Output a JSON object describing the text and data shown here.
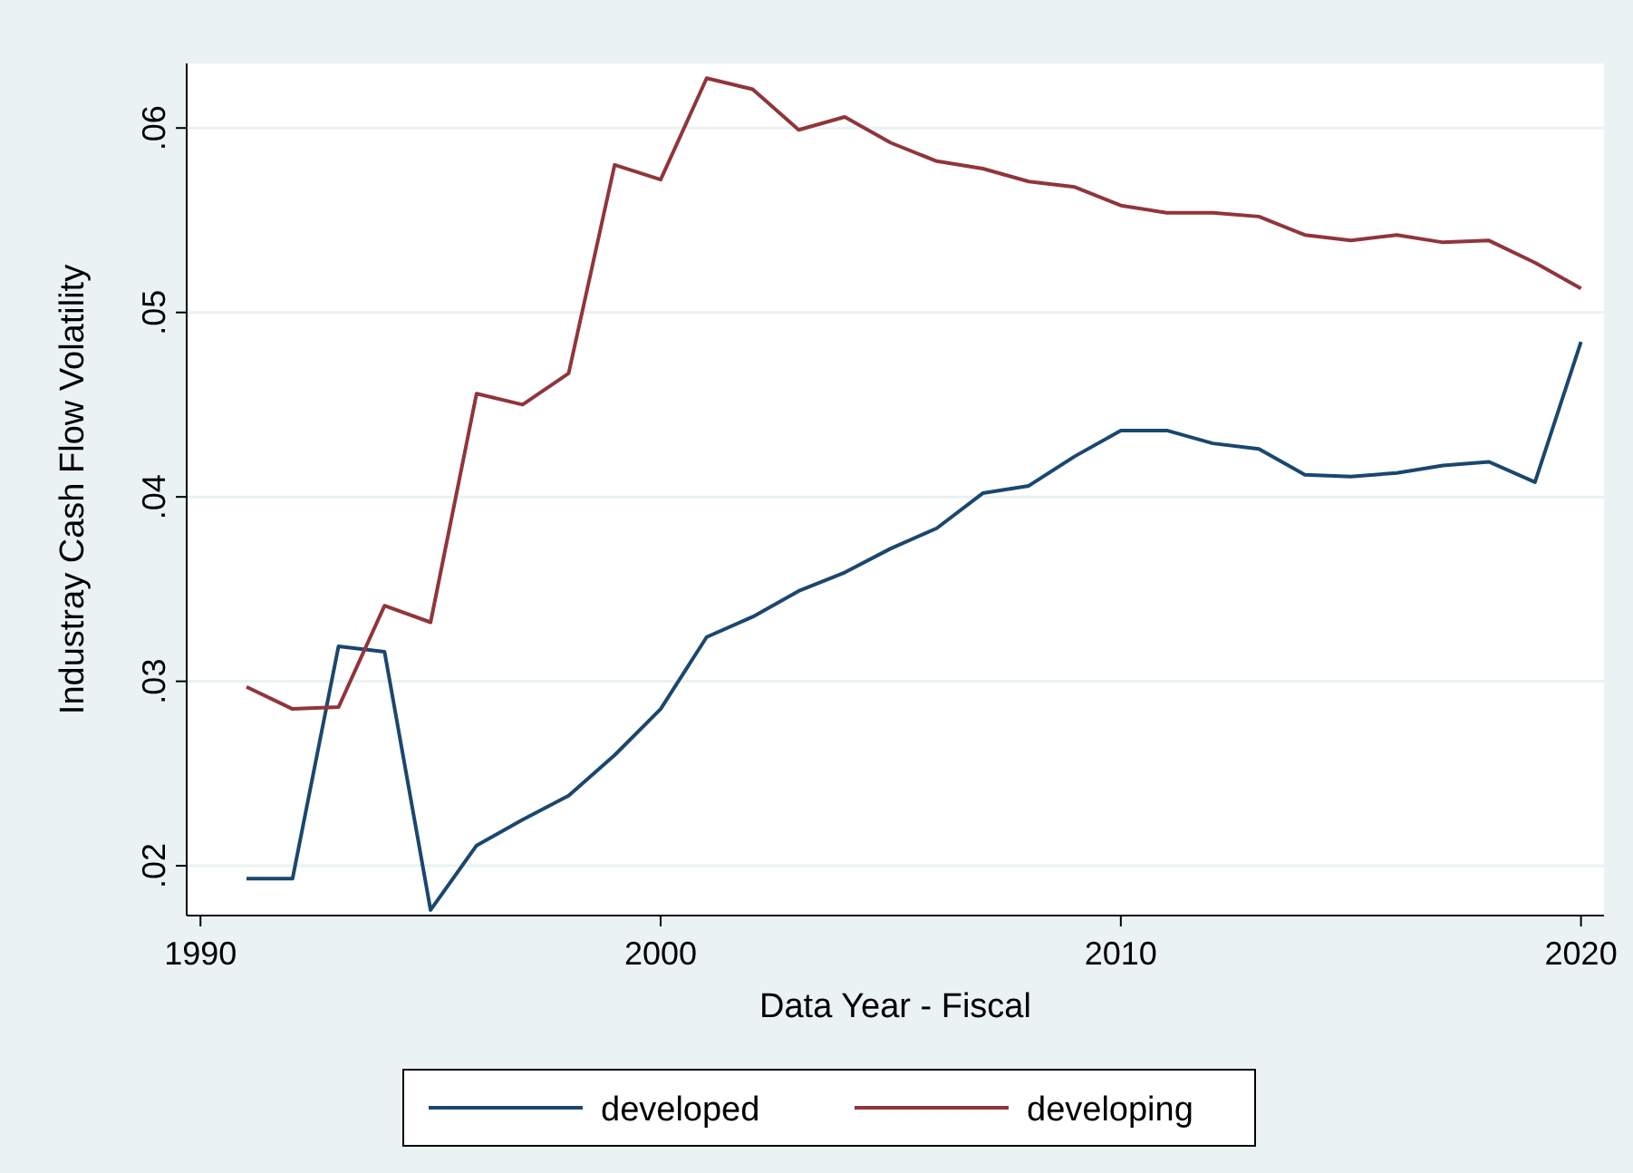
{
  "chart_data": {
    "type": "line",
    "xlabel": "Data Year - Fiscal",
    "ylabel": "Industray Cash Flow Volatility",
    "x": [
      1991,
      1992,
      1993,
      1994,
      1995,
      1996,
      1997,
      1998,
      1999,
      2000,
      2001,
      2002,
      2003,
      2004,
      2005,
      2006,
      2007,
      2008,
      2009,
      2010,
      2011,
      2012,
      2013,
      2014,
      2015,
      2016,
      2017,
      2018,
      2019,
      2020
    ],
    "series": [
      {
        "name": "developed",
        "color": "#1a476f",
        "values": [
          0.0193,
          0.0193,
          0.0319,
          0.0316,
          0.0176,
          0.0211,
          0.0225,
          0.0238,
          0.026,
          0.0285,
          0.0324,
          0.0335,
          0.0349,
          0.0359,
          0.0372,
          0.0383,
          0.0402,
          0.0406,
          0.0422,
          0.0436,
          0.0436,
          0.0429,
          0.0426,
          0.0412,
          0.0411,
          0.0413,
          0.0417,
          0.0419,
          0.0408,
          0.0484
        ]
      },
      {
        "name": "developing",
        "color": "#90353b",
        "values": [
          0.0297,
          0.0285,
          0.0286,
          0.0341,
          0.0332,
          0.0456,
          0.045,
          0.0467,
          0.058,
          0.0572,
          0.0627,
          0.0621,
          0.0599,
          0.0606,
          0.0592,
          0.0582,
          0.0578,
          0.0571,
          0.0568,
          0.0558,
          0.0554,
          0.0554,
          0.0552,
          0.0542,
          0.0539,
          0.0542,
          0.0538,
          0.0539,
          0.0527,
          0.0513
        ]
      }
    ],
    "xlim": [
      1989.7,
      2020.5
    ],
    "xticks": [
      1990,
      2000,
      2010,
      2020
    ],
    "ylim": [
      0.0173,
      0.0635
    ],
    "yticks": [
      {
        "value": 0.02,
        "label": ".02"
      },
      {
        "value": 0.03,
        "label": ".03"
      },
      {
        "value": 0.04,
        "label": ".04"
      },
      {
        "value": 0.05,
        "label": ".05"
      },
      {
        "value": 0.06,
        "label": ".06"
      }
    ],
    "grid": "y",
    "legend": "bottom",
    "marker": "none",
    "line_style": "solid"
  }
}
